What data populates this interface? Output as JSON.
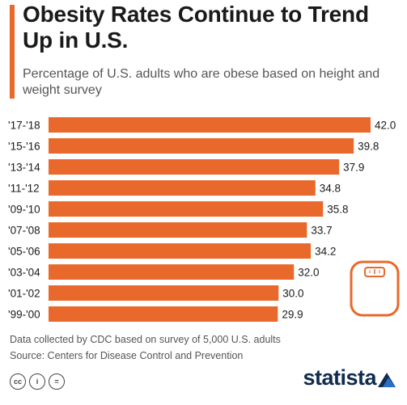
{
  "title": "Obesity Rates Continue to Trend Up in U.S.",
  "subtitle": "Percentage of U.S. adults who are obese based on height and weight survey",
  "note": "Data collected by CDC based on survey of 5,000 U.S. adults",
  "source": "Source: Centers for Disease Control and Prevention",
  "brand": "statista",
  "license_icons": [
    "cc",
    "i",
    "="
  ],
  "colors": {
    "bar": "#e8692b",
    "text": "#1a1a1a",
    "muted": "#555555",
    "brand": "#0f2b4e"
  },
  "icons": {
    "scale": "bathroom-scale-icon",
    "logo": "statista-logo-icon"
  },
  "chart_data": {
    "type": "bar",
    "orientation": "horizontal",
    "categories": [
      "'17-'18",
      "'15-'16",
      "'13-'14",
      "'11-'12",
      "'09-'10",
      "'07-'08",
      "'05-'06",
      "'03-'04",
      "'01-'02",
      "'99-'00"
    ],
    "values": [
      42.0,
      39.8,
      37.9,
      34.8,
      35.8,
      33.7,
      34.2,
      32.0,
      30.0,
      29.9
    ],
    "value_labels": [
      "42.0",
      "39.8",
      "37.9",
      "34.8",
      "35.8",
      "33.7",
      "34.2",
      "32.0",
      "30.0",
      "29.9"
    ],
    "xlim": [
      0,
      42.0
    ],
    "grid": false
  }
}
